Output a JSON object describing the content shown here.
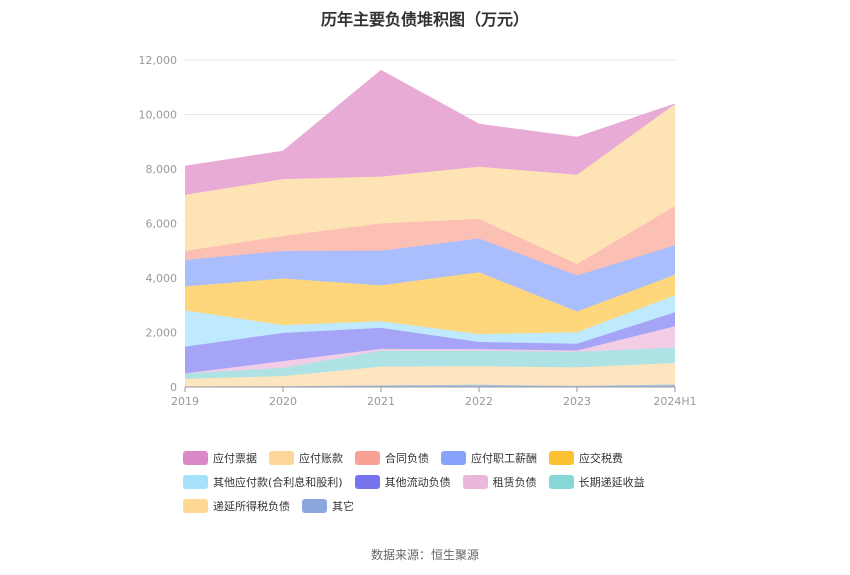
{
  "title": "历年主要负债堆积图（万元）",
  "source": "数据来源：恒生聚源",
  "colors": {
    "应付票据": "#e7abd6",
    "应付账款": "#fee4b5",
    "合同负债": "#fbbfb4",
    "应付职工薪酬": "#aabdfd",
    "应交税费": "#fed77c",
    "其他应付款(合利息和股利)": "#bfe9fc",
    "其他流动负债": "#a5a4f6",
    "租赁负债": "#f3cde6",
    "长期递延收益": "#aee2e4",
    "递延所得税负债": "#fde6bf",
    "其它": "#a9c1e4"
  },
  "legend_colors": {
    "应付票据": "#da89c8",
    "应付账款": "#fdd79a",
    "合同负债": "#f8a196",
    "应付职工薪酬": "#86a2fc",
    "应交税费": "#fcc132",
    "其他应付款(合利息和股利)": "#a5e1fb",
    "其他流动负债": "#7474ef",
    "租赁负债": "#eab8da",
    "长期递延收益": "#87d7d8",
    "递延所得税负债": "#fdd994",
    "其它": "#8aa8dc"
  },
  "chart_data": {
    "type": "area",
    "stacked": true,
    "categories": [
      "2019",
      "2020",
      "2021",
      "2022",
      "2023",
      "2024H1"
    ],
    "ylim": [
      0,
      12000
    ],
    "yticks": [
      "0",
      "2,000",
      "4,000",
      "6,000",
      "8,000",
      "10,000",
      "12,000"
    ],
    "grid": true,
    "legend_position": "bottom",
    "series": [
      {
        "name": "其它",
        "values": [
          20,
          30,
          60,
          80,
          40,
          90
        ]
      },
      {
        "name": "递延所得税负债",
        "values": [
          280,
          370,
          690,
          680,
          680,
          790
        ]
      },
      {
        "name": "长期递延收益",
        "values": [
          200,
          300,
          580,
          570,
          570,
          570
        ]
      },
      {
        "name": "租赁负债",
        "values": [
          0,
          250,
          70,
          60,
          50,
          780
        ]
      },
      {
        "name": "其他流动负债",
        "values": [
          980,
          1030,
          770,
          260,
          250,
          510
        ]
      },
      {
        "name": "其他应付款(合利息和股利)",
        "values": [
          1330,
          290,
          240,
          290,
          420,
          620
        ]
      },
      {
        "name": "应交税费",
        "values": [
          880,
          1710,
          1320,
          2270,
          760,
          760
        ]
      },
      {
        "name": "应付职工薪酬",
        "values": [
          970,
          1010,
          1270,
          1240,
          1320,
          1080
        ]
      },
      {
        "name": "合同负债",
        "values": [
          330,
          550,
          1000,
          720,
          420,
          1440
        ]
      },
      {
        "name": "应付账款",
        "values": [
          2060,
          2090,
          1720,
          1910,
          3280,
          3740
        ]
      },
      {
        "name": "应付票据",
        "values": [
          1050,
          1020,
          3890,
          1560,
          1370,
          0
        ]
      }
    ]
  }
}
